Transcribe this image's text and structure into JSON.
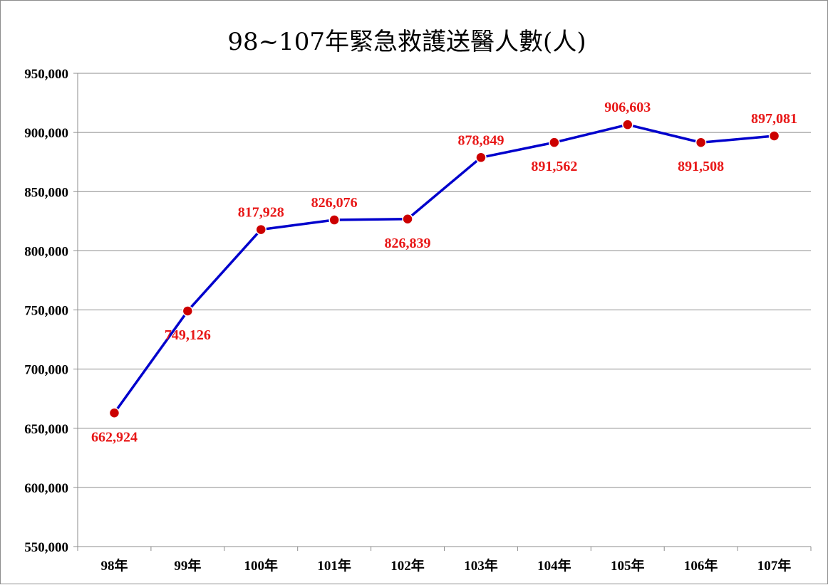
{
  "chart_data": {
    "type": "line",
    "title": "98~107年緊急救護送醫人數(人)",
    "categories": [
      "98年",
      "99年",
      "100年",
      "101年",
      "102年",
      "103年",
      "104年",
      "105年",
      "106年",
      "107年"
    ],
    "series": [
      {
        "values": [
          662924,
          749126,
          817928,
          826076,
          826839,
          878849,
          891562,
          906603,
          891508,
          897081
        ],
        "labels": [
          "662,924",
          "749,126",
          "817,928",
          "826,076",
          "826,839",
          "878,849",
          "891,562",
          "906,603",
          "891,508",
          "897,081"
        ],
        "label_placement": [
          "below",
          "below",
          "above",
          "above",
          "below",
          "above",
          "below",
          "above",
          "below",
          "above"
        ],
        "line_color": "#0000cc",
        "marker_color": "#cc0000"
      }
    ],
    "ylim": [
      550000,
      950000
    ],
    "yticks": [
      950000,
      900000,
      850000,
      800000,
      750000,
      700000,
      650000,
      600000,
      550000
    ],
    "ytick_labels": [
      "950,000",
      "900,000",
      "850,000",
      "800,000",
      "750,000",
      "700,000",
      "650,000",
      "600,000",
      "550,000"
    ],
    "grid": true,
    "label_color": "#e81818"
  }
}
